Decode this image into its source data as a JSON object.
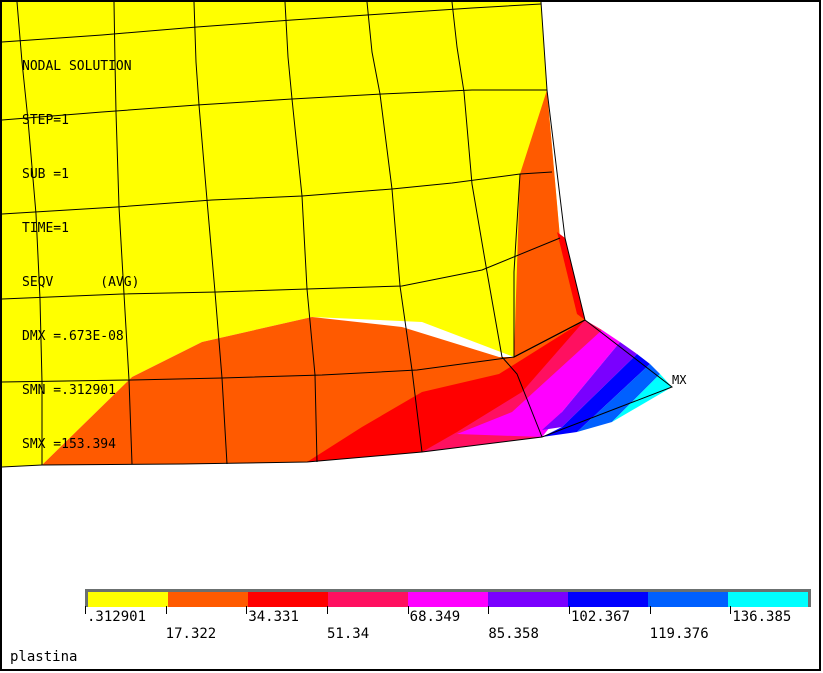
{
  "info": {
    "lines": [
      "NODAL SOLUTION",
      "",
      "STEP=1",
      "SUB =1",
      "TIME=1",
      "SEQV      (AVG)",
      "DMX =.673E-08",
      "SMN =.312901",
      "SMX =153.394"
    ]
  },
  "max_marker": "MX",
  "legend": {
    "colors": [
      "#ffff00",
      "#ff5a00",
      "#ff0000",
      "#ff1060",
      "#ff00ff",
      "#7a00ff",
      "#0000ff",
      "#0060ff",
      "#00ffff"
    ],
    "top_values": [
      ".312901",
      "34.331",
      "68.349",
      "102.367",
      "136.385"
    ],
    "bottom_values": [
      "17.322",
      "51.34",
      "85.358",
      "119.376"
    ]
  },
  "footer": "plastina",
  "colors": {
    "yellow": "#ffff00",
    "orange": "#ff5a00",
    "red": "#ff0000",
    "pinkred": "#ff1060",
    "magenta": "#ff00ff",
    "violet": "#7a00ff",
    "blue": "#0000ff",
    "lightblue": "#0060ff",
    "cyan": "#00ffff"
  }
}
